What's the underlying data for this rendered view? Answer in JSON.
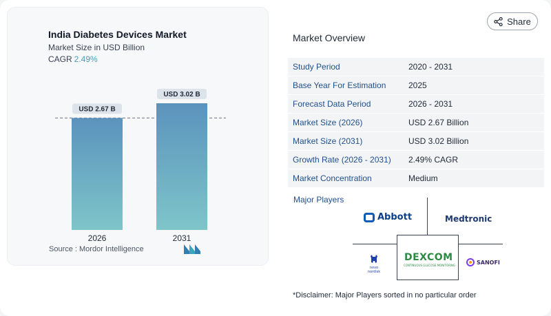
{
  "chart_data": {
    "type": "bar",
    "title": "India Diabetes Devices Market",
    "subtitle": "Market Size in USD Billion",
    "cagr_label": "CAGR",
    "cagr_value": "2.49%",
    "categories": [
      "2026",
      "2031"
    ],
    "values": [
      2.67,
      3.02
    ],
    "data_labels": [
      "USD 2.67 B",
      "USD 3.02 B"
    ],
    "ylim": [
      0,
      3.02
    ],
    "grid": false,
    "reference_line_value": 2.67,
    "colors": {
      "bar_top": "#5b93bd",
      "bar_bottom": "#7ec5c9",
      "label_bg": "#dde3ea"
    },
    "source": "Source :  Mordor Intelligence"
  },
  "share_label": "Share",
  "overview": {
    "title": "Market Overview",
    "rows": [
      {
        "label": "Study Period",
        "value": "2020 - 2031"
      },
      {
        "label": "Base Year For Estimation",
        "value": "2025"
      },
      {
        "label": "Forecast Data Period",
        "value": "2026 - 2031"
      },
      {
        "label": "Market Size (2026)",
        "value": "USD 2.67 Billion"
      },
      {
        "label": "Market Size (2031)",
        "value": "USD 3.02 Billion"
      },
      {
        "label": "Growth Rate (2026 - 2031)",
        "value": "2.49% CAGR"
      },
      {
        "label": "Market Concentration",
        "value": "Medium"
      }
    ]
  },
  "players": {
    "title": "Major Players",
    "abbott": "Abbott",
    "medtronic": "Medtronic",
    "dexcom": "DEXCOM",
    "dexcom_sub": "CONTINUOUS GLUCOSE MONITORING",
    "novo": "novo nordisk",
    "sanofi": "SANOFI"
  },
  "disclaimer": "*Disclaimer: Major Players sorted in no particular order"
}
